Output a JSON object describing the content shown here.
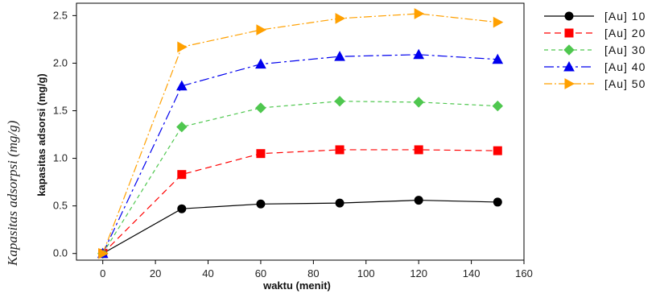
{
  "chart_data": {
    "type": "line",
    "xlabel": "waktu (menit)",
    "ylabel": "kapasitas adsorsi (mg/g)",
    "ylabel_overlap": "Kapasitas adsorpsi (mg/g)",
    "xlim": [
      -10,
      160
    ],
    "ylim": [
      -0.07,
      2.63
    ],
    "xticks": [
      0,
      20,
      40,
      60,
      80,
      100,
      120,
      140,
      160
    ],
    "yticks": [
      "0.0",
      "0.5",
      "1.0",
      "1.5",
      "2.0",
      "2.5"
    ],
    "legend_position": "right",
    "x": [
      0,
      30,
      60,
      90,
      120,
      150
    ],
    "series": [
      {
        "name": "[Au] 10",
        "values": [
          0.0,
          0.47,
          0.52,
          0.53,
          0.56,
          0.54
        ],
        "color": "#000000",
        "marker": "circle",
        "dash": "solid"
      },
      {
        "name": "[Au] 20",
        "values": [
          0.0,
          0.83,
          1.05,
          1.09,
          1.09,
          1.08
        ],
        "color": "#ff0000",
        "marker": "square",
        "dash": "dash"
      },
      {
        "name": "[Au] 30",
        "values": [
          0.0,
          1.33,
          1.53,
          1.6,
          1.59,
          1.55
        ],
        "color": "#4fc74f",
        "marker": "diamond",
        "dash": "shortdash"
      },
      {
        "name": "[Au] 40",
        "values": [
          0.0,
          1.76,
          1.99,
          2.07,
          2.09,
          2.04
        ],
        "color": "#0000ee",
        "marker": "triangle-up",
        "dash": "dashdot"
      },
      {
        "name": "[Au] 50",
        "values": [
          0.0,
          2.17,
          2.35,
          2.47,
          2.52,
          2.43
        ],
        "color": "#ffa000",
        "marker": "triangle-right",
        "dash": "dashdot2"
      }
    ]
  }
}
